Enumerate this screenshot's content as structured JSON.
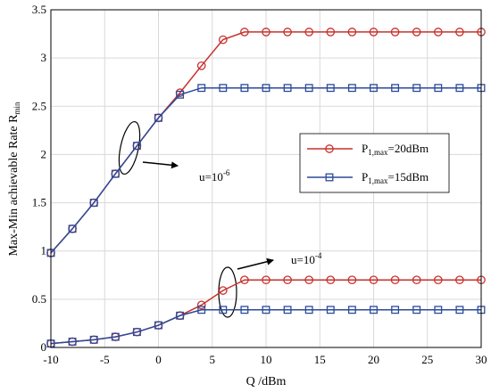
{
  "chart_data": {
    "type": "line",
    "xlabel": "Q /dBm",
    "ylabel": {
      "main": "Max-Min achievable Rate R",
      "sub": "min"
    },
    "xlim": [
      -10,
      30
    ],
    "ylim": [
      0,
      3.5
    ],
    "xticks": [
      -10,
      -5,
      0,
      5,
      10,
      15,
      20,
      25,
      30
    ],
    "yticks": [
      0,
      0.5,
      1,
      1.5,
      2,
      2.5,
      3,
      3.5
    ],
    "grid": true,
    "legend_position": "right-middle",
    "series": [
      {
        "name": "P1,max=20dBm",
        "legend_main": "P",
        "legend_sub": "1,max",
        "legend_value": "=20dBm",
        "color": "#c8312c",
        "marker": "circle",
        "x": [
          -10,
          -8,
          -6,
          -4,
          -2,
          0,
          2,
          4,
          6,
          8,
          10,
          12,
          14,
          16,
          18,
          20,
          22,
          24,
          26,
          28,
          30
        ],
        "values": [
          0.98,
          1.23,
          1.5,
          1.8,
          2.09,
          2.38,
          2.64,
          2.92,
          3.19,
          3.27,
          3.27,
          3.27,
          3.27,
          3.27,
          3.27,
          3.27,
          3.27,
          3.27,
          3.27,
          3.27,
          3.27
        ]
      },
      {
        "name": "P1,max=15dBm",
        "legend_main": "P",
        "legend_sub": "1,max",
        "legend_value": "=15dBm",
        "color": "#2c4a9a",
        "marker": "square",
        "x": [
          -10,
          -8,
          -6,
          -4,
          -2,
          0,
          2,
          4,
          6,
          8,
          10,
          12,
          14,
          16,
          18,
          20,
          22,
          24,
          26,
          28,
          30
        ],
        "values": [
          0.98,
          1.23,
          1.5,
          1.8,
          2.09,
          2.38,
          2.62,
          2.69,
          2.69,
          2.69,
          2.69,
          2.69,
          2.69,
          2.69,
          2.69,
          2.69,
          2.69,
          2.69,
          2.69,
          2.69,
          2.69
        ]
      },
      {
        "name": "P1,max=20dBm",
        "color": "#c8312c",
        "marker": "circle",
        "x": [
          -10,
          -8,
          -6,
          -4,
          -2,
          0,
          2,
          4,
          6,
          8,
          10,
          12,
          14,
          16,
          18,
          20,
          22,
          24,
          26,
          28,
          30
        ],
        "values": [
          0.04,
          0.06,
          0.08,
          0.11,
          0.16,
          0.23,
          0.33,
          0.44,
          0.59,
          0.7,
          0.7,
          0.7,
          0.7,
          0.7,
          0.7,
          0.7,
          0.7,
          0.7,
          0.7,
          0.7,
          0.7
        ]
      },
      {
        "name": "P1,max=15dBm",
        "color": "#2c4a9a",
        "marker": "square",
        "x": [
          -10,
          -8,
          -6,
          -4,
          -2,
          0,
          2,
          4,
          6,
          8,
          10,
          12,
          14,
          16,
          18,
          20,
          22,
          24,
          26,
          28,
          30
        ],
        "values": [
          0.04,
          0.06,
          0.08,
          0.11,
          0.16,
          0.23,
          0.33,
          0.39,
          0.39,
          0.39,
          0.39,
          0.39,
          0.39,
          0.39,
          0.39,
          0.39,
          0.39,
          0.39,
          0.39,
          0.39,
          0.39
        ]
      }
    ],
    "annotations": [
      {
        "base": "u=10",
        "exp": "-6"
      },
      {
        "base": "u=10",
        "exp": "-4"
      }
    ]
  }
}
